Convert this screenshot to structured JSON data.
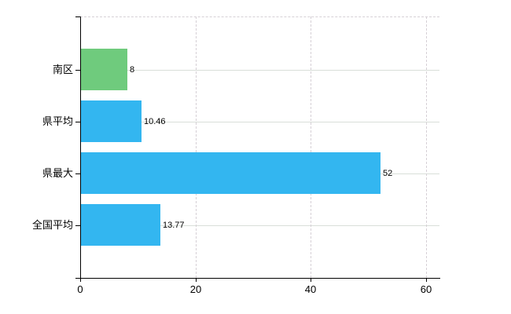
{
  "chart_data": {
    "type": "bar",
    "orientation": "horizontal",
    "title": "",
    "xlabel": "",
    "ylabel": "",
    "categories": [
      "南区",
      "県平均",
      "県最大",
      "全国平均"
    ],
    "values": [
      8,
      10.46,
      52,
      13.77
    ],
    "value_labels": [
      "8",
      "10.46",
      "52",
      "13.77"
    ],
    "bar_colors": [
      "#6fcb7d",
      "#33b6f0",
      "#33b6f0",
      "#33b6f0"
    ],
    "x_tick_labels": [
      "0",
      "20",
      "40",
      "60"
    ],
    "x_tick_values": [
      0,
      20,
      40,
      60
    ],
    "xlim": [
      0,
      62.3
    ],
    "legend": "none",
    "grid": {
      "vertical": "dashed at x ticks",
      "horizontal": "solid at category centers",
      "plot_top_border": "dashed"
    },
    "colors": {
      "bar_blue": "#33b6f0",
      "bar_green": "#6fcb7d",
      "axis": "#000000",
      "grid_horizontal": "#d9dfd9",
      "grid_vertical": "#d6d0d6",
      "background": "#ffffff",
      "text": "#000000"
    }
  }
}
